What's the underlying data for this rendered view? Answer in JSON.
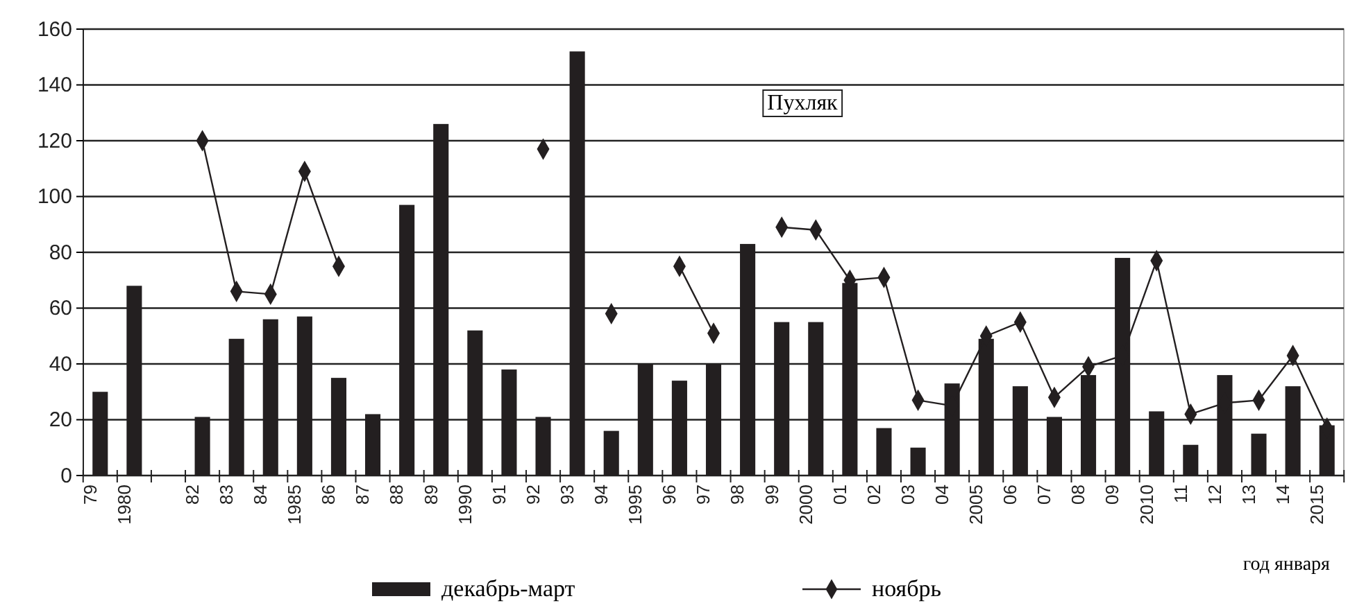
{
  "chart_data": {
    "type": "bar",
    "categories": [
      "79",
      "1980",
      null,
      "82",
      "83",
      "84",
      "1985",
      "86",
      "87",
      "88",
      "89",
      "1990",
      "91",
      "92",
      "93",
      "94",
      "1995",
      "96",
      "97",
      "98",
      "99",
      "2000",
      "01",
      "02",
      "03",
      "04",
      "2005",
      "06",
      "07",
      "08",
      "09",
      "2010",
      "11",
      "12",
      "13",
      "14",
      "2015"
    ],
    "series": [
      {
        "name": "декабрь-март",
        "color": "#231f20",
        "values": [
          30,
          68,
          null,
          21,
          49,
          56,
          57,
          35,
          22,
          97,
          126,
          52,
          38,
          21,
          152,
          16,
          40,
          34,
          40,
          83,
          55,
          55,
          69,
          17,
          10,
          33,
          49,
          32,
          21,
          36,
          78,
          23,
          11,
          36,
          15,
          32,
          18
        ]
      },
      {
        "name": "ноябрь",
        "type": "line",
        "color": "#231f20",
        "marker": "diamond",
        "line_style": "solid",
        "values": [
          null,
          null,
          null,
          120,
          66,
          65,
          109,
          75,
          null,
          null,
          null,
          null,
          null,
          117,
          null,
          58,
          null,
          75,
          51,
          null,
          89,
          88,
          70,
          71,
          27,
          25,
          50,
          55,
          28,
          39,
          43,
          77,
          22,
          26,
          27,
          43,
          17
        ]
      }
    ],
    "xlabel": "год января",
    "annotations": [
      "Пухляк"
    ],
    "ylim": [
      0,
      160
    ],
    "yticks": [
      0,
      20,
      40,
      60,
      80,
      100,
      120,
      140,
      160
    ],
    "grid": "y",
    "legend": "bottom"
  }
}
